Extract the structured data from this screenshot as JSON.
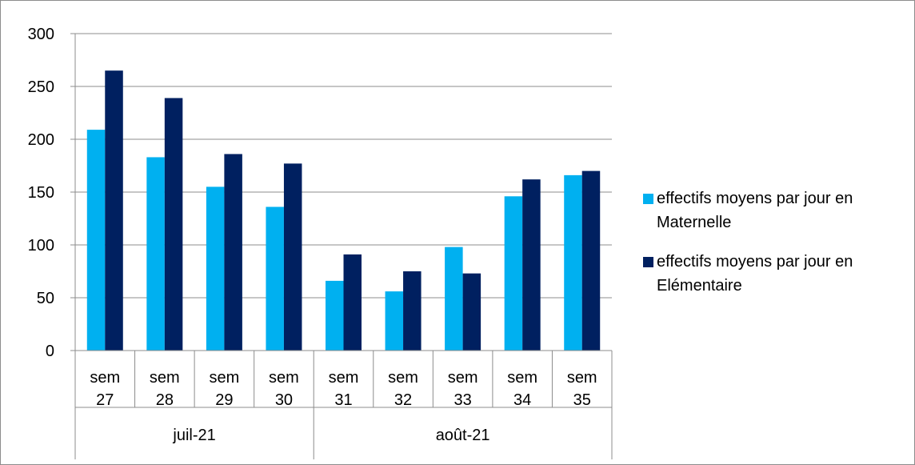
{
  "chart_data": {
    "type": "bar",
    "title": "",
    "xlabel": "",
    "ylabel": "",
    "ylim": [
      0,
      300
    ],
    "yticks": [
      0,
      50,
      100,
      150,
      200,
      250,
      300
    ],
    "grid": true,
    "legend_position": "right",
    "categories": [
      {
        "line1": "sem",
        "line2": "27"
      },
      {
        "line1": "sem",
        "line2": "28"
      },
      {
        "line1": "sem",
        "line2": "29"
      },
      {
        "line1": "sem",
        "line2": "30"
      },
      {
        "line1": "sem",
        "line2": "31"
      },
      {
        "line1": "sem",
        "line2": "32"
      },
      {
        "line1": "sem",
        "line2": "33"
      },
      {
        "line1": "sem",
        "line2": "34"
      },
      {
        "line1": "sem",
        "line2": "35"
      }
    ],
    "groups": [
      {
        "label": "juil-21",
        "count": 4
      },
      {
        "label": "août-21",
        "count": 5
      }
    ],
    "series": [
      {
        "name": "effectifs moyens par jour en Maternelle",
        "color": "#00b0f0",
        "values": [
          209,
          183,
          155,
          136,
          66,
          56,
          98,
          146,
          166
        ]
      },
      {
        "name": "effectifs moyens par jour en Elémentaire",
        "color": "#002060",
        "values": [
          265,
          239,
          186,
          177,
          91,
          75,
          73,
          162,
          170
        ]
      }
    ]
  }
}
